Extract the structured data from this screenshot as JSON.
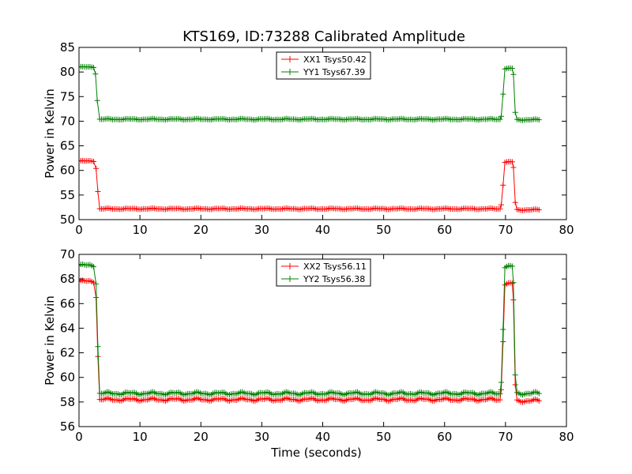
{
  "figure": {
    "title": "KTS169, ID:73288 Calibrated Amplitude",
    "background": "#ffffff"
  },
  "colors": {
    "XX": "#ff0000",
    "YY": "#008000",
    "axes": "#000000"
  },
  "chart_data": [
    {
      "type": "line",
      "title": "KTS169, ID:73288 Calibrated Amplitude",
      "xlabel": "",
      "ylabel": "Power in Kelvin",
      "xlim": [
        0,
        80
      ],
      "ylim": [
        50,
        85
      ],
      "xticks": [
        "0",
        "10",
        "20",
        "30",
        "40",
        "50",
        "60",
        "70",
        "80"
      ],
      "yticks": [
        "50",
        "55",
        "60",
        "65",
        "70",
        "75",
        "80",
        "85"
      ],
      "grid": false,
      "legend_position": "top-center",
      "marker": "+",
      "series": [
        {
          "name": "XX1 Tsys50.42",
          "color": "#ff0000",
          "segments": [
            {
              "start": 0.0,
              "end": 2.5,
              "value": 61.9
            },
            {
              "start": 2.8,
              "end": 2.8,
              "value": 60.4
            },
            {
              "start": 3.1,
              "end": 3.1,
              "value": 55.7
            },
            {
              "start": 3.4,
              "end": 69.0,
              "value": 52.2
            },
            {
              "start": 69.3,
              "end": 69.3,
              "value": 53.0
            },
            {
              "start": 69.6,
              "end": 69.6,
              "value": 57.0
            },
            {
              "start": 69.9,
              "end": 71.0,
              "value": 61.7
            },
            {
              "start": 71.3,
              "end": 71.3,
              "value": 60.6
            },
            {
              "start": 71.6,
              "end": 71.6,
              "value": 53.5
            },
            {
              "start": 71.9,
              "end": 75.5,
              "value": 52.0
            }
          ]
        },
        {
          "name": "YY1 Tsys67.39",
          "color": "#008000",
          "segments": [
            {
              "start": 0.0,
              "end": 2.4,
              "value": 81.0
            },
            {
              "start": 2.7,
              "end": 2.7,
              "value": 79.6
            },
            {
              "start": 3.0,
              "end": 3.0,
              "value": 74.2
            },
            {
              "start": 3.4,
              "end": 69.0,
              "value": 70.4
            },
            {
              "start": 69.3,
              "end": 69.3,
              "value": 71.0
            },
            {
              "start": 69.6,
              "end": 69.6,
              "value": 75.5
            },
            {
              "start": 69.9,
              "end": 71.0,
              "value": 80.7
            },
            {
              "start": 71.3,
              "end": 71.3,
              "value": 79.5
            },
            {
              "start": 71.6,
              "end": 71.6,
              "value": 71.8
            },
            {
              "start": 71.9,
              "end": 75.5,
              "value": 70.3
            }
          ]
        }
      ]
    },
    {
      "type": "line",
      "title": "",
      "xlabel": "Time (seconds)",
      "ylabel": "Power in Kelvin",
      "xlim": [
        0,
        80
      ],
      "ylim": [
        56,
        70
      ],
      "xticks": [
        "0",
        "10",
        "20",
        "30",
        "40",
        "50",
        "60",
        "70",
        "80"
      ],
      "yticks": [
        "56",
        "58",
        "60",
        "62",
        "64",
        "66",
        "68",
        "70"
      ],
      "grid": false,
      "legend_position": "top-center",
      "marker": "+",
      "series": [
        {
          "name": "XX2 Tsys56.11",
          "color": "#ff0000",
          "segments": [
            {
              "start": 0.0,
              "end": 2.5,
              "value": 67.8
            },
            {
              "start": 2.8,
              "end": 2.8,
              "value": 66.5
            },
            {
              "start": 3.1,
              "end": 3.1,
              "value": 61.7
            },
            {
              "start": 3.4,
              "end": 69.0,
              "value": 58.2
            },
            {
              "start": 69.3,
              "end": 69.3,
              "value": 59.0
            },
            {
              "start": 69.6,
              "end": 69.6,
              "value": 62.9
            },
            {
              "start": 69.9,
              "end": 71.0,
              "value": 67.6
            },
            {
              "start": 71.3,
              "end": 71.3,
              "value": 66.3
            },
            {
              "start": 71.6,
              "end": 71.6,
              "value": 59.4
            },
            {
              "start": 71.9,
              "end": 75.5,
              "value": 58.1
            }
          ]
        },
        {
          "name": "YY2 Tsys56.38",
          "color": "#008000",
          "segments": [
            {
              "start": 0.0,
              "end": 2.5,
              "value": 69.1
            },
            {
              "start": 2.8,
              "end": 2.8,
              "value": 67.6
            },
            {
              "start": 3.1,
              "end": 3.1,
              "value": 62.5
            },
            {
              "start": 3.4,
              "end": 69.0,
              "value": 58.7
            },
            {
              "start": 69.3,
              "end": 69.3,
              "value": 59.6
            },
            {
              "start": 69.6,
              "end": 69.6,
              "value": 63.9
            },
            {
              "start": 69.9,
              "end": 71.0,
              "value": 69.0
            },
            {
              "start": 71.3,
              "end": 71.3,
              "value": 67.7
            },
            {
              "start": 71.6,
              "end": 71.6,
              "value": 60.2
            },
            {
              "start": 71.9,
              "end": 75.5,
              "value": 58.7
            }
          ]
        }
      ]
    }
  ]
}
